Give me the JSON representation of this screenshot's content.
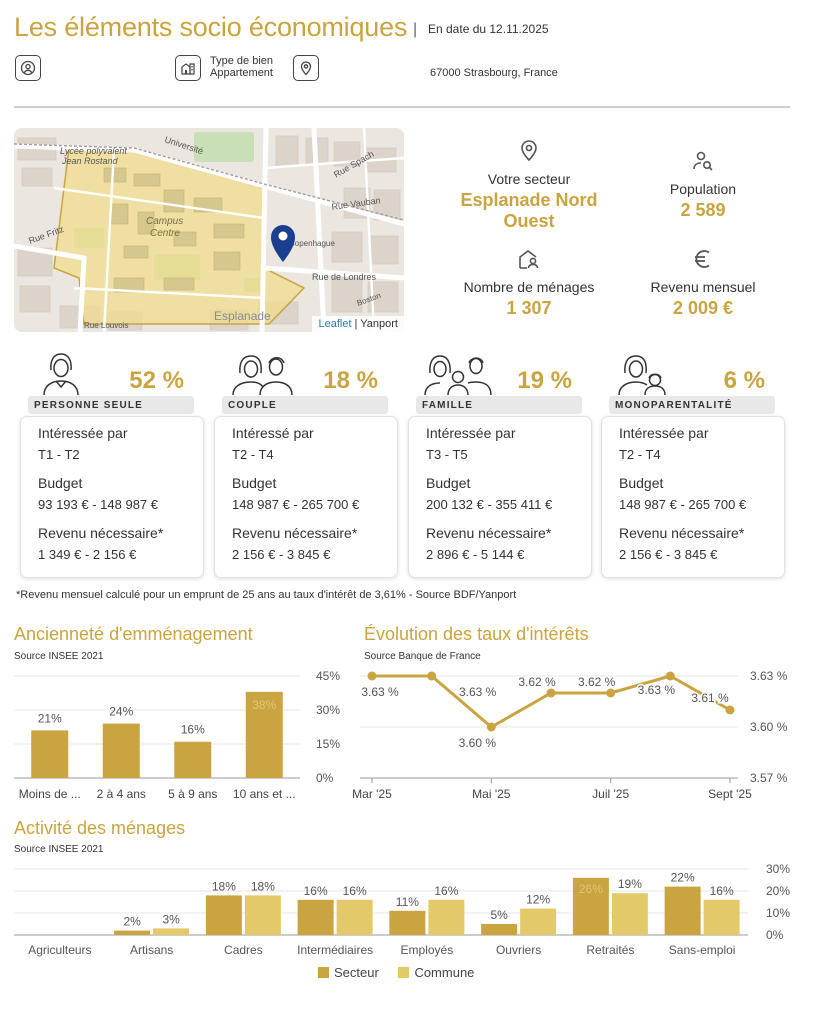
{
  "header": {
    "title": "Les éléments socio économiques",
    "separator": "|",
    "date": "En date du 12.11.2025",
    "property_type_label": "Type de bien",
    "property_type_value": "Appartement",
    "address": "67000 Strasbourg, France"
  },
  "map": {
    "attribution_leaflet": "Leaflet",
    "attribution_sep": " | ",
    "attribution_source": "Yanport",
    "labels": {
      "lycee1": "Lycée polyvalent",
      "lycee2": "Jean Rostand",
      "campus1": "Campus",
      "campus2": "Centre",
      "rue_londres": "Rue de Londres",
      "rue_fritz": "Rue Fritz",
      "esplanade": "Esplanade",
      "rue_vauban": "Rue Vauban",
      "universite": "Université",
      "copenhague": "Copenhague",
      "rue_spach": "Rue Spach",
      "rue_louvois": "Rue Louvois",
      "boston": "Boston"
    }
  },
  "stats": {
    "sector": {
      "label": "Votre secteur",
      "value_line1": "Esplanade Nord",
      "value_line2": "Ouest"
    },
    "population": {
      "label": "Population",
      "value": "2 589"
    },
    "households": {
      "label": "Nombre de ménages",
      "value": "1 307"
    },
    "income": {
      "label": "Revenu mensuel",
      "value": "2 009 €"
    }
  },
  "household_types": [
    {
      "name": "PERSONNE SEULE",
      "pct": "52 %",
      "h1": "Intéressée par",
      "v1": "T1 - T2",
      "h2": "Budget",
      "v2": "93 193 € - 148 987 €",
      "h3": "Revenu nécessaire*",
      "v3": "1 349 € - 2 156 €"
    },
    {
      "name": "COUPLE",
      "pct": "18 %",
      "h1": "Intéressé par",
      "v1": "T2 - T4",
      "h2": "Budget",
      "v2": "148 987 € - 265 700 €",
      "h3": "Revenu nécessaire*",
      "v3": "2 156 € - 3 845 €"
    },
    {
      "name": "FAMILLE",
      "pct": "19 %",
      "h1": "Intéressée par",
      "v1": "T3 - T5",
      "h2": "Budget",
      "v2": "200 132 € - 355 411 €",
      "h3": "Revenu nécessaire*",
      "v3": "2 896 € - 5 144 €"
    },
    {
      "name": "MONOPARENTALITÉ",
      "pct": "6 %",
      "h1": "Intéressée par",
      "v1": "T2 - T4",
      "h2": "Budget",
      "v2": "148 987 € - 265 700 €",
      "h3": "Revenu nécessaire*",
      "v3": "2 156 € - 3 845 €"
    }
  ],
  "footnote": "*Revenu mensuel calculé pour un emprunt de 25 ans au taux d'intérêt de 3,61% - Source BDF/Yanport",
  "colors": {
    "gold": "#c9a440",
    "commune": "#e3c96a"
  },
  "chart_data": [
    {
      "type": "bar",
      "title": "Ancienneté d'emménagement",
      "subtitle": "Source INSEE 2021",
      "categories": [
        "Moins de ...",
        "2 à 4 ans",
        "5 à 9 ans",
        "10 ans et ..."
      ],
      "values": [
        21,
        24,
        16,
        38
      ],
      "value_labels": [
        "21%",
        "24%",
        "16%",
        "38%"
      ],
      "ylim": [
        0,
        45
      ],
      "yticks": [
        0,
        15,
        30,
        45
      ],
      "ytick_labels": [
        "0%",
        "15%",
        "30%",
        "45%"
      ],
      "color": "#c9a440"
    },
    {
      "type": "line",
      "title": "Évolution des taux d'intérêts",
      "subtitle": "Source Banque de France",
      "x": [
        "Mar '25",
        "Avr '25",
        "Mai '25",
        "Juin '25",
        "Juil '25",
        "Août '25",
        "Sept '25"
      ],
      "xtick_labels": [
        "Mar '25",
        "Mai '25",
        "Juil '25",
        "Sept '25"
      ],
      "values": [
        3.63,
        3.63,
        3.6,
        3.62,
        3.62,
        3.63,
        3.61
      ],
      "value_labels": [
        "3.63 %",
        "3.63 %",
        "3.60 %",
        "3.62 %",
        "3.62 %",
        "3.63 %",
        "3.61 %"
      ],
      "ylim": [
        3.57,
        3.63
      ],
      "yticks": [
        3.57,
        3.6,
        3.63
      ],
      "ytick_labels": [
        "3.57 %",
        "3.60 %",
        "3.63 %"
      ],
      "color": "#c9a440"
    },
    {
      "type": "bar",
      "title": "Activité des ménages",
      "subtitle": "Source INSEE 2021",
      "categories": [
        "Agriculteurs",
        "Artisans",
        "Cadres",
        "Intermédiaires",
        "Employés",
        "Ouvriers",
        "Retraités",
        "Sans-emploi"
      ],
      "series": [
        {
          "name": "Secteur",
          "values": [
            0,
            2,
            18,
            16,
            11,
            5,
            26,
            22
          ],
          "labels": [
            "",
            "2%",
            "18%",
            "16%",
            "11%",
            "5%",
            "26%",
            "22%"
          ]
        },
        {
          "name": "Commune",
          "values": [
            0,
            3,
            18,
            16,
            16,
            12,
            19,
            16
          ],
          "labels": [
            "",
            "3%",
            "18%",
            "16%",
            "16%",
            "12%",
            "19%",
            "16%"
          ]
        }
      ],
      "ylim": [
        0,
        30
      ],
      "yticks": [
        0,
        10,
        20,
        30
      ],
      "ytick_labels": [
        "0%",
        "10%",
        "20%",
        "30%"
      ],
      "legend_position": "bottom"
    }
  ]
}
